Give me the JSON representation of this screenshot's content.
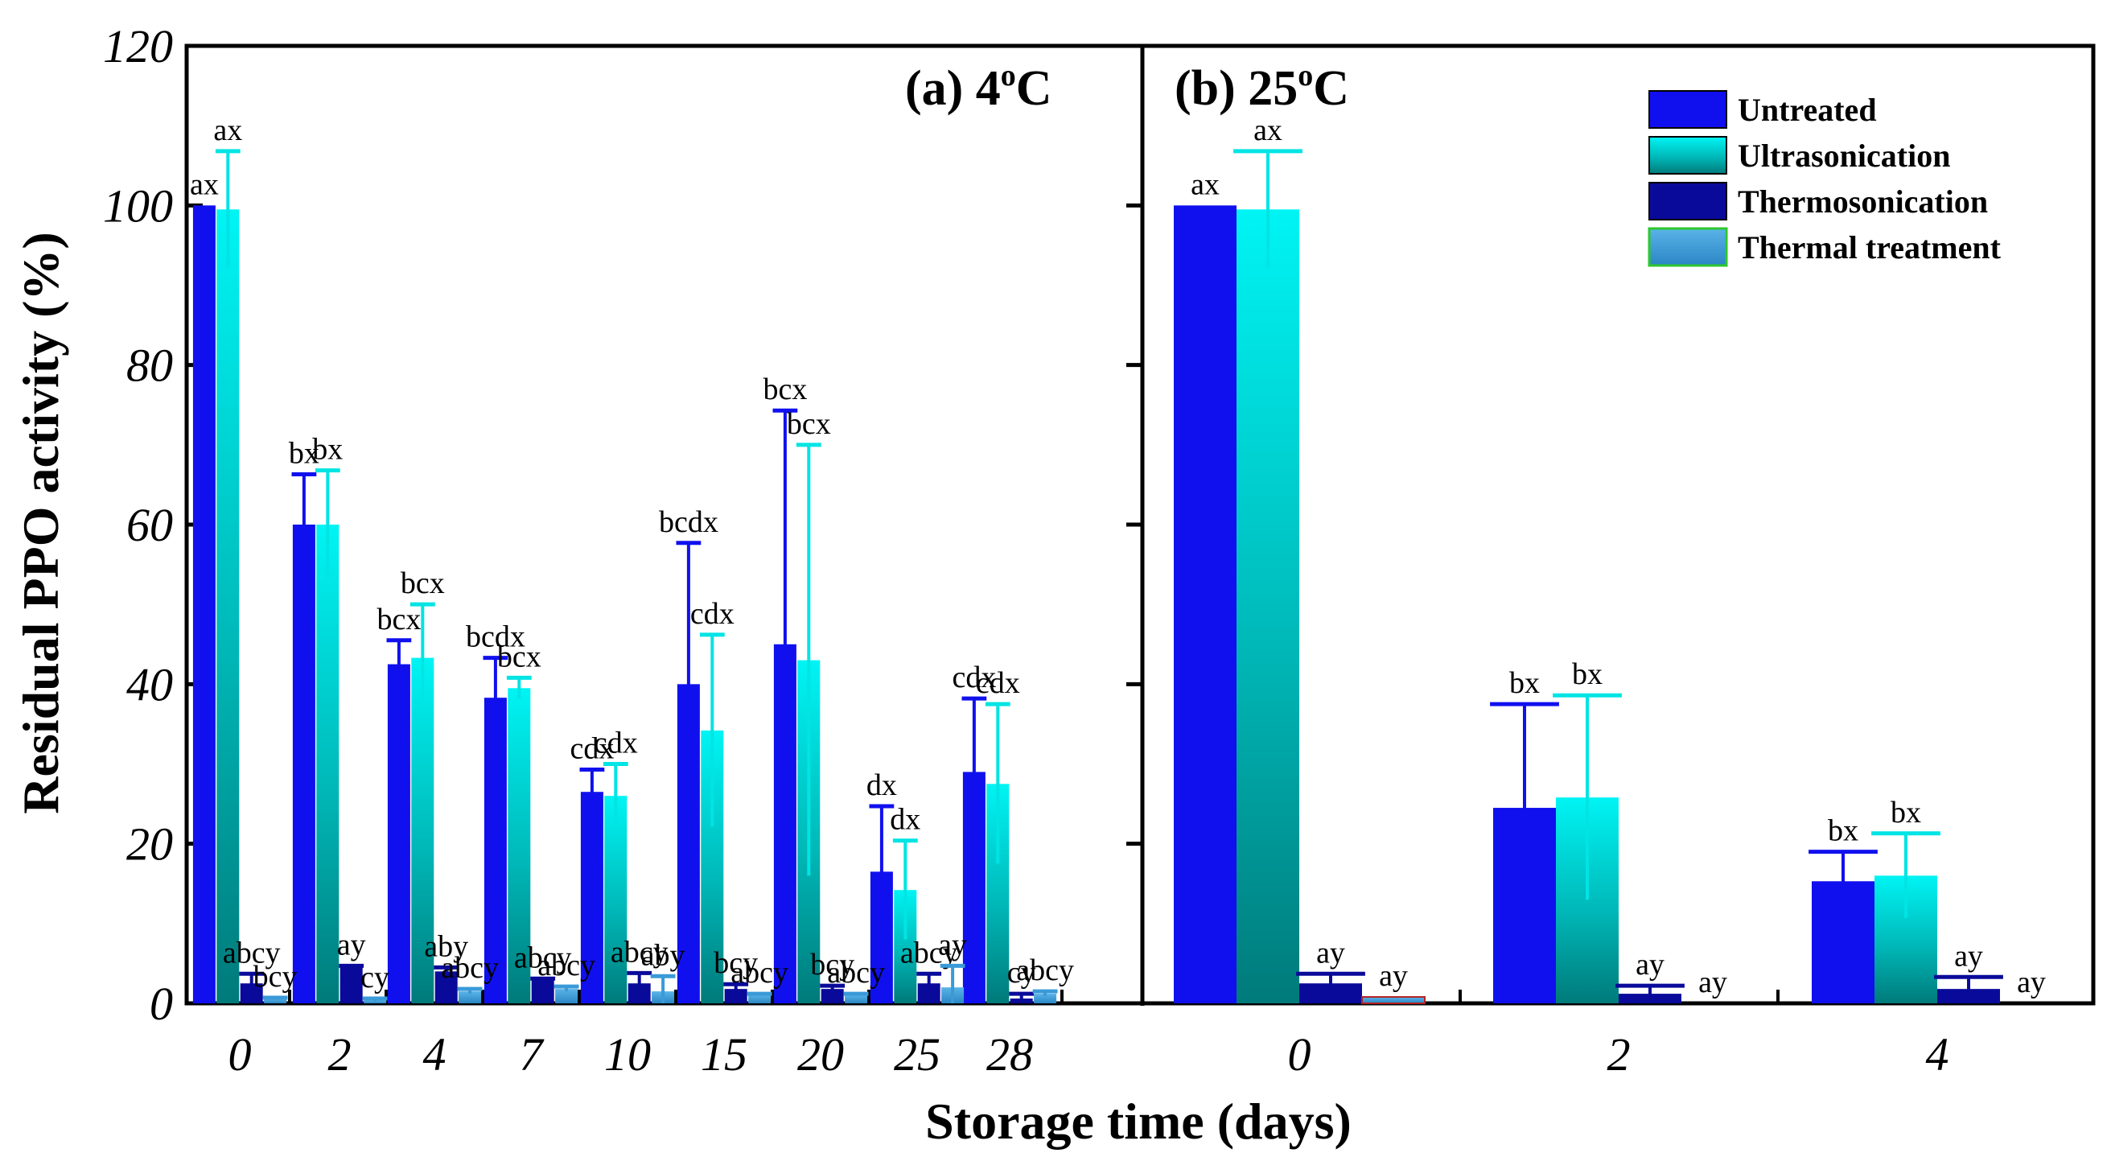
{
  "chart_data": {
    "type": "bar",
    "ylabel": "Residual PPO activity (%)",
    "xlabel": "Storage time (days)",
    "ylim": [
      0,
      120
    ],
    "yticks": [
      "0",
      "20",
      "40",
      "60",
      "80",
      "100",
      "120"
    ],
    "legend": {
      "placement": "top-right",
      "entries": [
        "Untreated",
        "Ultrasonication",
        "Thermosonication",
        "Thermal treatment"
      ]
    },
    "series_colors": {
      "Untreated": "#1010ee",
      "Ultrasonication": "#00f0f0",
      "Thermosonication": "#0a0a9a",
      "Thermal treatment": "#3a9ad8"
    },
    "panels": [
      {
        "title_prefix": "(a) 4",
        "title_sup": "o",
        "title_suffix": "C",
        "categories": [
          "0",
          "2",
          "4",
          "7",
          "10",
          "15",
          "20",
          "25",
          "28"
        ],
        "series": [
          {
            "name": "Untreated",
            "values": [
              100,
              60,
              42.5,
              38.3,
              26.5,
              40,
              45,
              16.5,
              29
            ],
            "errors": [
              0,
              6.3,
              3,
              5,
              2.8,
              17.7,
              29.3,
              8.2,
              9.2
            ],
            "labels": [
              "ax",
              "bx",
              "bcx",
              "bcdx",
              "cdx",
              "bcdx",
              "bcx",
              "dx",
              "cdx"
            ]
          },
          {
            "name": "Ultrasonication",
            "values": [
              99.5,
              60,
              43.3,
              39.5,
              26,
              34.2,
              43,
              14.2,
              27.5
            ],
            "errors": [
              7.3,
              6.8,
              6.7,
              1.3,
              4,
              12,
              27,
              6.2,
              10
            ],
            "labels": [
              "ax",
              "bx",
              "bcx",
              "bcx",
              "cdx",
              "cdx",
              "bcx",
              "dx",
              "cdx"
            ]
          },
          {
            "name": "Thermosonication",
            "values": [
              2.5,
              4.5,
              4,
              3,
              2.5,
              1.8,
              1.8,
              2.5,
              0.6
            ],
            "errors": [
              1.2,
              0.2,
              0.5,
              0.1,
              1.3,
              0.6,
              0.4,
              1.2,
              0.6
            ],
            "labels": [
              "abcy",
              "ay",
              "aby",
              "abcy",
              "abcy",
              "bcy",
              "bcy",
              "abcy",
              "cy"
            ]
          },
          {
            "name": "Thermal treatment",
            "values": [
              0.6,
              0.4,
              1.5,
              1.8,
              1.5,
              1.1,
              1.1,
              2,
              1.2
            ],
            "errors": [
              0.1,
              0.2,
              0.3,
              0.3,
              1.9,
              0.1,
              0.1,
              2.7,
              0.3
            ],
            "labels": [
              "bcy",
              "cy",
              "abcy",
              "abcy",
              "aby",
              "abcy",
              "abcy",
              "ay",
              "abcy"
            ]
          }
        ]
      },
      {
        "title_prefix": "(b) 25",
        "title_sup": "o",
        "title_suffix": "C",
        "categories": [
          "0",
          "2",
          "4"
        ],
        "series": [
          {
            "name": "Untreated",
            "values": [
              100,
              24.5,
              15.3
            ],
            "errors": [
              0,
              13,
              3.7
            ],
            "labels": [
              "ax",
              "bx",
              "bx"
            ]
          },
          {
            "name": "Ultrasonication",
            "values": [
              99.5,
              25.8,
              16
            ],
            "errors": [
              7.3,
              12.8,
              5.3
            ],
            "labels": [
              "ax",
              "bx",
              "bx"
            ]
          },
          {
            "name": "Thermosonication",
            "values": [
              2.5,
              1.2,
              1.8
            ],
            "errors": [
              1.2,
              1,
              1.5
            ],
            "labels": [
              "ay",
              "ay",
              "ay"
            ]
          },
          {
            "name": "Thermal treatment",
            "values": [
              0.8,
              0,
              0
            ],
            "errors": [
              0,
              0,
              0
            ],
            "labels": [
              "ay",
              "ay",
              "ay"
            ]
          }
        ]
      }
    ]
  }
}
